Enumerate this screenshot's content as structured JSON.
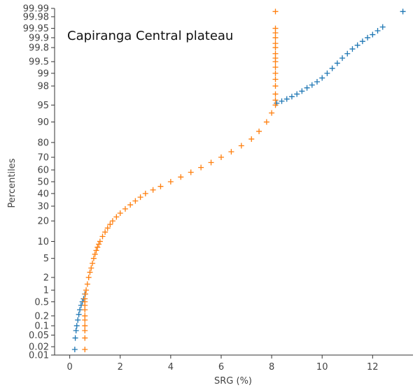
{
  "chart_data": {
    "type": "scatter",
    "title": "Capiranga Central plateau",
    "xlabel": "SRG (%)",
    "ylabel": "Percentiles",
    "xlim": [
      -0.6,
      13.6
    ],
    "yscale": "probability",
    "ylim": [
      0.01,
      99.99
    ],
    "xticks": [
      0,
      2,
      4,
      6,
      8,
      10,
      12
    ],
    "yticks": [
      0.01,
      0.02,
      0.05,
      0.1,
      0.2,
      0.5,
      1,
      2,
      5,
      10,
      20,
      30,
      40,
      50,
      60,
      70,
      80,
      90,
      95,
      98,
      99,
      99.5,
      99.8,
      99.9,
      99.95,
      99.98,
      99.99
    ],
    "ytick_labels": [
      "0.01",
      "0.02",
      "0.05",
      "0.1",
      "0.2",
      "0.5",
      "1",
      "2",
      "5",
      "10",
      "20",
      "30",
      "40",
      "50",
      "60",
      "70",
      "80",
      "90",
      "95",
      "98",
      "99",
      "99.5",
      "99.8",
      "99.9",
      "99.95",
      "99.98",
      "99.99"
    ],
    "grid": false,
    "marker": "plus",
    "series": [
      {
        "color": "#1f77b4",
        "points": [
          [
            0.2,
            0.016
          ],
          [
            0.22,
            0.04
          ],
          [
            0.25,
            0.07
          ],
          [
            0.28,
            0.1
          ],
          [
            0.32,
            0.15
          ],
          [
            0.36,
            0.22
          ],
          [
            0.4,
            0.3
          ],
          [
            0.45,
            0.4
          ],
          [
            0.5,
            0.5
          ],
          [
            0.55,
            0.6
          ],
          [
            0.6,
            0.8
          ],
          [
            8.2,
            95.4
          ],
          [
            8.4,
            95.8
          ],
          [
            8.6,
            96.2
          ],
          [
            8.8,
            96.6
          ],
          [
            9.0,
            97.0
          ],
          [
            9.2,
            97.4
          ],
          [
            9.4,
            97.8
          ],
          [
            9.6,
            98.1
          ],
          [
            9.8,
            98.4
          ],
          [
            10.0,
            98.7
          ],
          [
            10.2,
            99.0
          ],
          [
            10.4,
            99.25
          ],
          [
            10.6,
            99.45
          ],
          [
            10.8,
            99.6
          ],
          [
            11.0,
            99.7
          ],
          [
            11.2,
            99.78
          ],
          [
            11.4,
            99.83
          ],
          [
            11.6,
            99.87
          ],
          [
            11.8,
            99.9
          ],
          [
            12.0,
            99.92
          ],
          [
            12.2,
            99.94
          ],
          [
            12.4,
            99.955
          ],
          [
            13.2,
            99.987
          ]
        ]
      },
      {
        "color": "#ff7f0e",
        "points": [
          [
            0.6,
            0.016
          ],
          [
            0.6,
            0.04
          ],
          [
            0.6,
            0.07
          ],
          [
            0.6,
            0.1
          ],
          [
            0.6,
            0.15
          ],
          [
            0.6,
            0.2
          ],
          [
            0.6,
            0.3
          ],
          [
            0.6,
            0.4
          ],
          [
            0.6,
            0.5
          ],
          [
            0.6,
            0.6
          ],
          [
            0.62,
            0.8
          ],
          [
            0.65,
            1.0
          ],
          [
            0.7,
            1.4
          ],
          [
            0.75,
            2.0
          ],
          [
            0.8,
            2.6
          ],
          [
            0.85,
            3.2
          ],
          [
            0.9,
            4.0
          ],
          [
            0.95,
            5.0
          ],
          [
            1.0,
            6.0
          ],
          [
            1.05,
            7.0
          ],
          [
            1.1,
            8.0
          ],
          [
            1.15,
            9.0
          ],
          [
            1.2,
            10.0
          ],
          [
            1.3,
            12.0
          ],
          [
            1.4,
            14.0
          ],
          [
            1.5,
            16.0
          ],
          [
            1.6,
            18.0
          ],
          [
            1.7,
            20.0
          ],
          [
            1.85,
            22.5
          ],
          [
            2.0,
            25.0
          ],
          [
            2.2,
            28.0
          ],
          [
            2.4,
            31.0
          ],
          [
            2.6,
            34.0
          ],
          [
            2.8,
            37.0
          ],
          [
            3.0,
            40.0
          ],
          [
            3.3,
            43.0
          ],
          [
            3.6,
            46.0
          ],
          [
            4.0,
            50.0
          ],
          [
            4.4,
            54.0
          ],
          [
            4.8,
            58.0
          ],
          [
            5.2,
            62.0
          ],
          [
            5.6,
            66.0
          ],
          [
            6.0,
            70.0
          ],
          [
            6.4,
            74.0
          ],
          [
            6.8,
            78.0
          ],
          [
            7.2,
            82.0
          ],
          [
            7.5,
            86.0
          ],
          [
            7.8,
            90.0
          ],
          [
            8.0,
            93.0
          ],
          [
            8.15,
            95.0
          ],
          [
            8.15,
            96.0
          ],
          [
            8.15,
            97.0
          ],
          [
            8.15,
            98.0
          ],
          [
            8.15,
            98.6
          ],
          [
            8.15,
            99.0
          ],
          [
            8.15,
            99.3
          ],
          [
            8.15,
            99.5
          ],
          [
            8.15,
            99.6
          ],
          [
            8.15,
            99.7
          ],
          [
            8.15,
            99.8
          ],
          [
            8.15,
            99.85
          ],
          [
            8.15,
            99.9
          ],
          [
            8.15,
            99.93
          ],
          [
            8.15,
            99.95
          ],
          [
            8.15,
            99.987
          ]
        ]
      }
    ]
  }
}
